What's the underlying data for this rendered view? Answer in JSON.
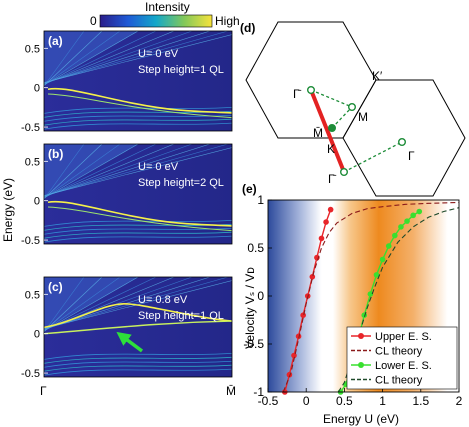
{
  "colorbar": {
    "title": "Intensity",
    "min_label": "0",
    "max_label": "High"
  },
  "band_panels": {
    "ylabel": "Energy (eV)",
    "x_ticks": [
      "Γ",
      "M̄"
    ],
    "y_ticks": [
      "0.5",
      "0",
      "-0.5"
    ],
    "panels": [
      {
        "label": "(a)",
        "line1": "U= 0 eV",
        "line2": "Step height=1 QL"
      },
      {
        "label": "(b)",
        "line1": "U= 0 eV",
        "line2": "Step height=2 QL"
      },
      {
        "label": "(c)",
        "line1": "U= 0.8 eV",
        "line2": "Step height=1 QL"
      }
    ]
  },
  "bz_diagram": {
    "label": "(d)",
    "points": {
      "gamma_bar_top": "Γ̄",
      "gamma_bar_bottom": "Γ̄",
      "m_bar": "M̄",
      "k_point": "K",
      "k_prime": "K′",
      "m_point": "M",
      "gamma": "Γ"
    }
  },
  "chart_data": {
    "type": "line",
    "label": "(e)",
    "xlabel": "Energy U (eV)",
    "ylabel": "Velocity Vₛ / Vᴅ",
    "xlim": [
      -0.5,
      2
    ],
    "ylim": [
      -1,
      1
    ],
    "x_ticks": [
      "-0.5",
      "0",
      "0.5",
      "1",
      "1.5",
      "2"
    ],
    "y_ticks": [
      "1",
      "0.5",
      "0",
      "-0.5",
      "-1"
    ],
    "legend_position": "bottom-right",
    "series": [
      {
        "name": "Upper E. S.",
        "color": "#e8252a",
        "style": "line-markers",
        "x": [
          -0.28,
          -0.22,
          -0.16,
          -0.1,
          -0.04,
          0.02,
          0.08,
          0.14,
          0.2,
          0.26,
          0.32
        ],
        "y": [
          -1.0,
          -0.82,
          -0.62,
          -0.42,
          -0.2,
          0.0,
          0.2,
          0.4,
          0.6,
          0.77,
          0.9
        ]
      },
      {
        "name": "CL theory",
        "color": "#8b1a1a",
        "style": "dashed",
        "x": [
          -0.3,
          -0.2,
          -0.1,
          0.0,
          0.1,
          0.2,
          0.3,
          0.4,
          0.6,
          0.8,
          1.0,
          1.3,
          1.6,
          2.0
        ],
        "y": [
          -1.0,
          -0.8,
          -0.45,
          -0.08,
          0.25,
          0.5,
          0.66,
          0.76,
          0.86,
          0.91,
          0.93,
          0.955,
          0.965,
          0.975
        ]
      },
      {
        "name": "Lower E. S.",
        "color": "#39e02f",
        "style": "line-markers",
        "x": [
          0.45,
          0.52,
          0.6,
          0.68,
          0.76,
          0.84,
          0.92,
          1.0,
          1.08,
          1.16,
          1.24,
          1.32,
          1.4,
          1.48
        ],
        "y": [
          -1.0,
          -0.92,
          -0.7,
          -0.45,
          -0.2,
          0.02,
          0.22,
          0.38,
          0.52,
          0.63,
          0.72,
          0.78,
          0.84,
          0.88
        ]
      },
      {
        "name": "CL theory",
        "color": "#1f4a2a",
        "style": "dashed",
        "x": [
          0.42,
          0.5,
          0.6,
          0.7,
          0.8,
          0.9,
          1.0,
          1.2,
          1.4,
          1.6,
          1.8,
          2.0
        ],
        "y": [
          -1.0,
          -0.9,
          -0.65,
          -0.38,
          -0.12,
          0.1,
          0.3,
          0.56,
          0.72,
          0.82,
          0.88,
          0.92
        ]
      }
    ]
  }
}
